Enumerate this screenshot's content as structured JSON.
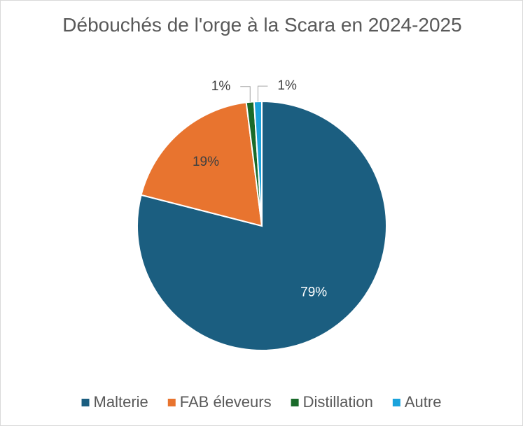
{
  "chart_data": {
    "type": "pie",
    "title": "Débouchés de l'orge à la Scara en 2024-2025",
    "categories": [
      "Malterie",
      "FAB éleveurs",
      "Distillation",
      "Autre"
    ],
    "values": [
      79,
      19,
      1,
      1
    ],
    "value_labels": [
      "79%",
      "19%",
      "1%",
      "1%"
    ],
    "colors": [
      "#1b5e80",
      "#e8742f",
      "#1a6b2a",
      "#1ba3dc"
    ],
    "legend": "bottom"
  }
}
